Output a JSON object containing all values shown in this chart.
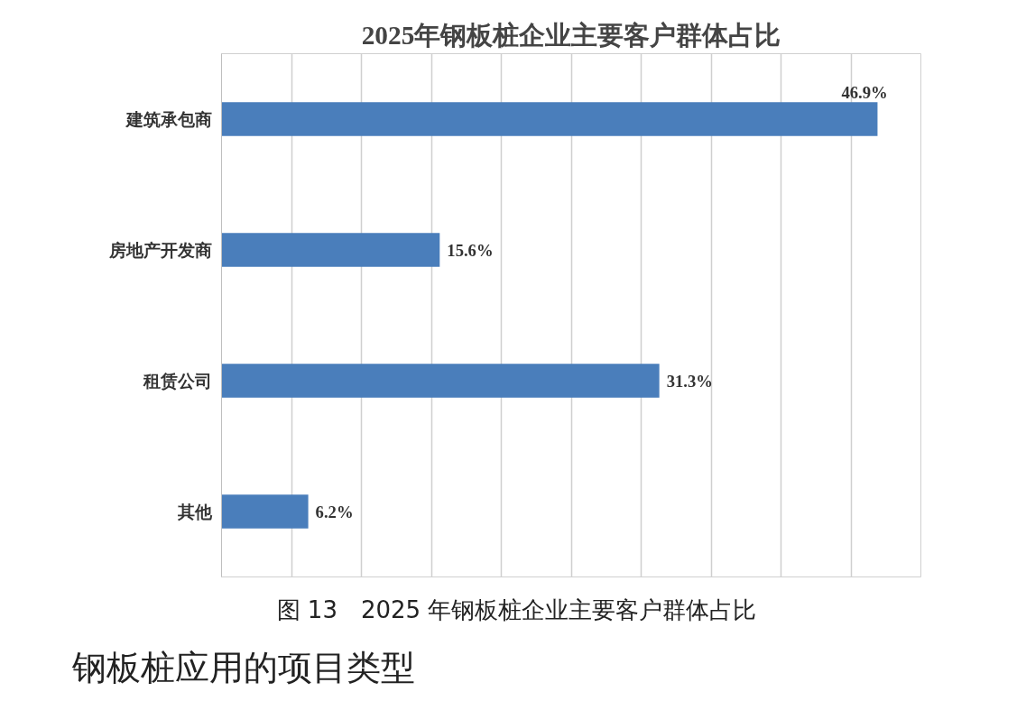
{
  "chart_data": {
    "type": "bar",
    "orientation": "horizontal",
    "title": "2025年钢板桩企业主要客户群体占比",
    "categories": [
      "建筑承包商",
      "房地产开发商",
      "租赁公司",
      "其他"
    ],
    "values": [
      46.9,
      15.6,
      31.3,
      6.2
    ],
    "value_labels": [
      "46.9%",
      "15.6%",
      "31.3%",
      "6.2%"
    ],
    "color": "#4a7ebb",
    "xlim": [
      0,
      50
    ],
    "xticks": [
      {
        "value": 0,
        "label": null
      },
      {
        "value": 5,
        "label": null
      },
      {
        "value": 10,
        "label": null
      },
      {
        "value": 15,
        "label": null
      },
      {
        "value": 20,
        "label": null
      },
      {
        "value": 25,
        "label": null
      },
      {
        "value": 30,
        "label": null
      },
      {
        "value": 35,
        "label": null
      },
      {
        "value": 40,
        "label": null
      },
      {
        "value": 45,
        "label": null
      },
      {
        "value": 50,
        "label": null
      }
    ],
    "grid": "x",
    "annotations": [
      "图 13　2025 年钢板桩企业主要客户群体占比",
      "钢板桩应用的项目类型"
    ]
  }
}
